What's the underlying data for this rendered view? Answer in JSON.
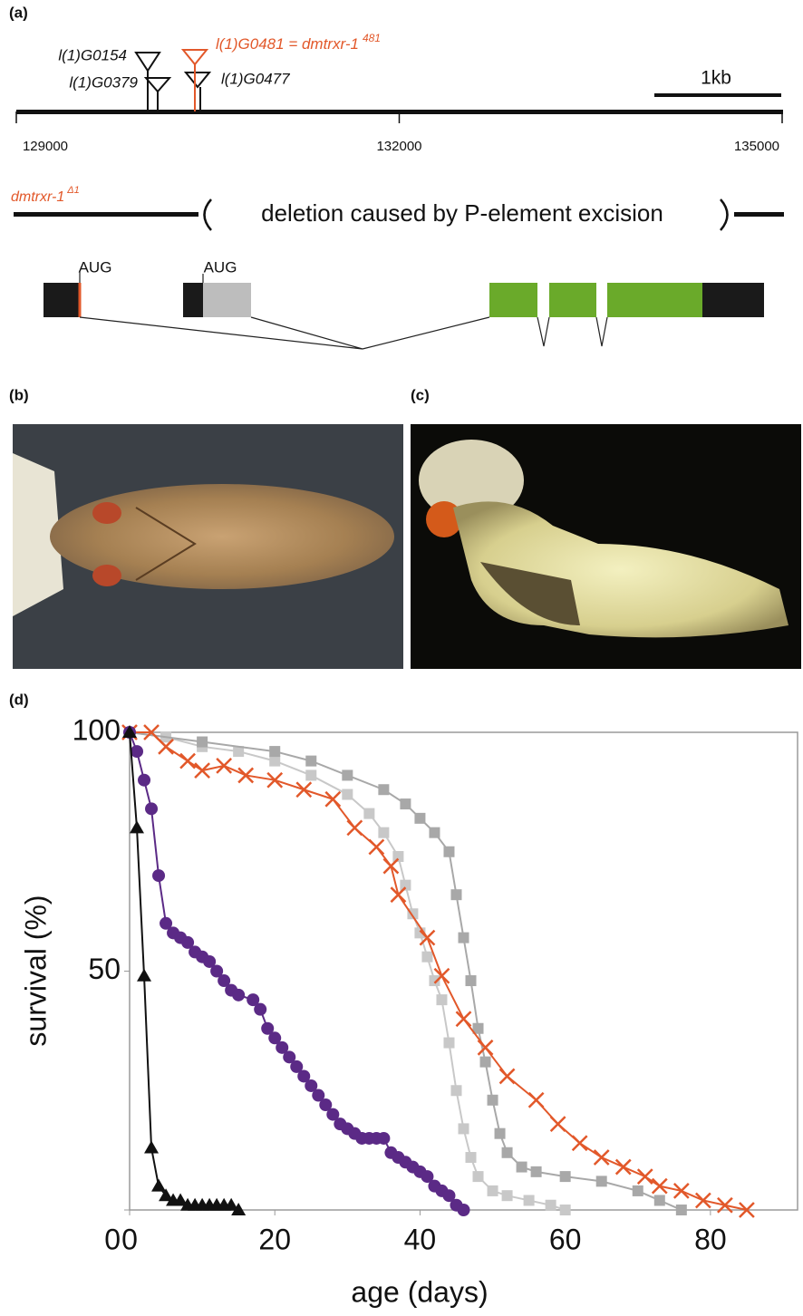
{
  "panel_a": {
    "label": "(a)",
    "insertions": [
      "l(1)G0154",
      "l(1)G0481 = dmtrxr-1",
      "l(1)G0379",
      "l(1)G0477"
    ],
    "insertion_superscript": "481",
    "scale_bar": "1kb",
    "genome_ticks": [
      129000,
      132000,
      135000
    ],
    "allele": "dmtrxr-1",
    "allele_superscript": "Δ1",
    "deletion_text": "deletion caused by P-element excision",
    "start_codons": [
      "AUG",
      "AUG"
    ]
  },
  "panel_b": {
    "label": "(b)"
  },
  "panel_c": {
    "label": "(c)"
  },
  "panel_d": {
    "label": "(d)"
  },
  "chart_data": {
    "type": "line",
    "x_label": "age (days)",
    "y_label": "survival (%)",
    "xlim": [
      0,
      92
    ],
    "ylim": [
      0,
      100
    ],
    "xticks": [
      0,
      20,
      40,
      60,
      80
    ],
    "yticks": [
      0,
      50,
      100
    ],
    "series": [
      {
        "color": "#c8c8c8",
        "marker": "square",
        "x": [
          0,
          5,
          10,
          15,
          20,
          25,
          30,
          33,
          35,
          37,
          38,
          39,
          40,
          41,
          42,
          43,
          44,
          45,
          46,
          47,
          48,
          50,
          52,
          55,
          58,
          60
        ],
        "values": [
          100,
          99,
          97,
          96,
          94,
          91,
          87,
          83,
          79,
          74,
          68,
          62,
          58,
          53,
          48,
          44,
          35,
          25,
          17,
          11,
          7,
          4,
          3,
          2,
          1,
          0
        ]
      },
      {
        "color": "#a8a8a8",
        "marker": "square",
        "x": [
          0,
          10,
          20,
          25,
          30,
          35,
          38,
          40,
          42,
          44,
          45,
          46,
          47,
          48,
          49,
          50,
          51,
          52,
          54,
          56,
          60,
          65,
          70,
          73,
          76
        ],
        "values": [
          100,
          98,
          96,
          94,
          91,
          88,
          85,
          82,
          79,
          75,
          66,
          57,
          48,
          38,
          31,
          23,
          16,
          12,
          9,
          8,
          7,
          6,
          4,
          2,
          0
        ]
      },
      {
        "color": "#e2582a",
        "marker": "x",
        "x": [
          0,
          3,
          5,
          8,
          10,
          13,
          16,
          20,
          24,
          28,
          31,
          34,
          36,
          37,
          41,
          43,
          46,
          49,
          52,
          56,
          59,
          62,
          65,
          68,
          71,
          73,
          76,
          79,
          82,
          85
        ],
        "values": [
          100,
          100,
          97,
          94,
          92,
          93,
          91,
          90,
          88,
          86,
          80,
          76,
          72,
          66,
          57,
          49,
          40,
          34,
          28,
          23,
          18,
          14,
          11,
          9,
          7,
          5,
          4,
          2,
          1,
          0
        ]
      },
      {
        "color": "#5b2a86",
        "marker": "circle",
        "x": [
          0,
          1,
          2,
          3,
          4,
          5,
          6,
          7,
          8,
          9,
          10,
          11,
          12,
          13,
          14,
          15,
          17,
          18,
          19,
          20,
          21,
          22,
          23,
          24,
          25,
          26,
          27,
          28,
          29,
          30,
          31,
          32,
          33,
          34,
          35,
          36,
          37,
          38,
          39,
          40,
          41,
          42,
          43,
          44,
          45,
          46
        ],
        "values": [
          100,
          96,
          90,
          84,
          70,
          60,
          58,
          57,
          56,
          54,
          53,
          52,
          50,
          48,
          46,
          45,
          44,
          42,
          38,
          36,
          34,
          32,
          30,
          28,
          26,
          24,
          22,
          20,
          18,
          17,
          16,
          15,
          15,
          15,
          15,
          12,
          11,
          10,
          9,
          8,
          7,
          5,
          4,
          3,
          1,
          0
        ]
      },
      {
        "color": "#111111",
        "marker": "triangle",
        "x": [
          0,
          1,
          2,
          3,
          4,
          5,
          6,
          7,
          8,
          9,
          10,
          11,
          12,
          13,
          14,
          15
        ],
        "values": [
          100,
          80,
          49,
          13,
          5,
          3,
          2,
          2,
          1,
          1,
          1,
          1,
          1,
          1,
          1,
          0
        ]
      }
    ]
  }
}
